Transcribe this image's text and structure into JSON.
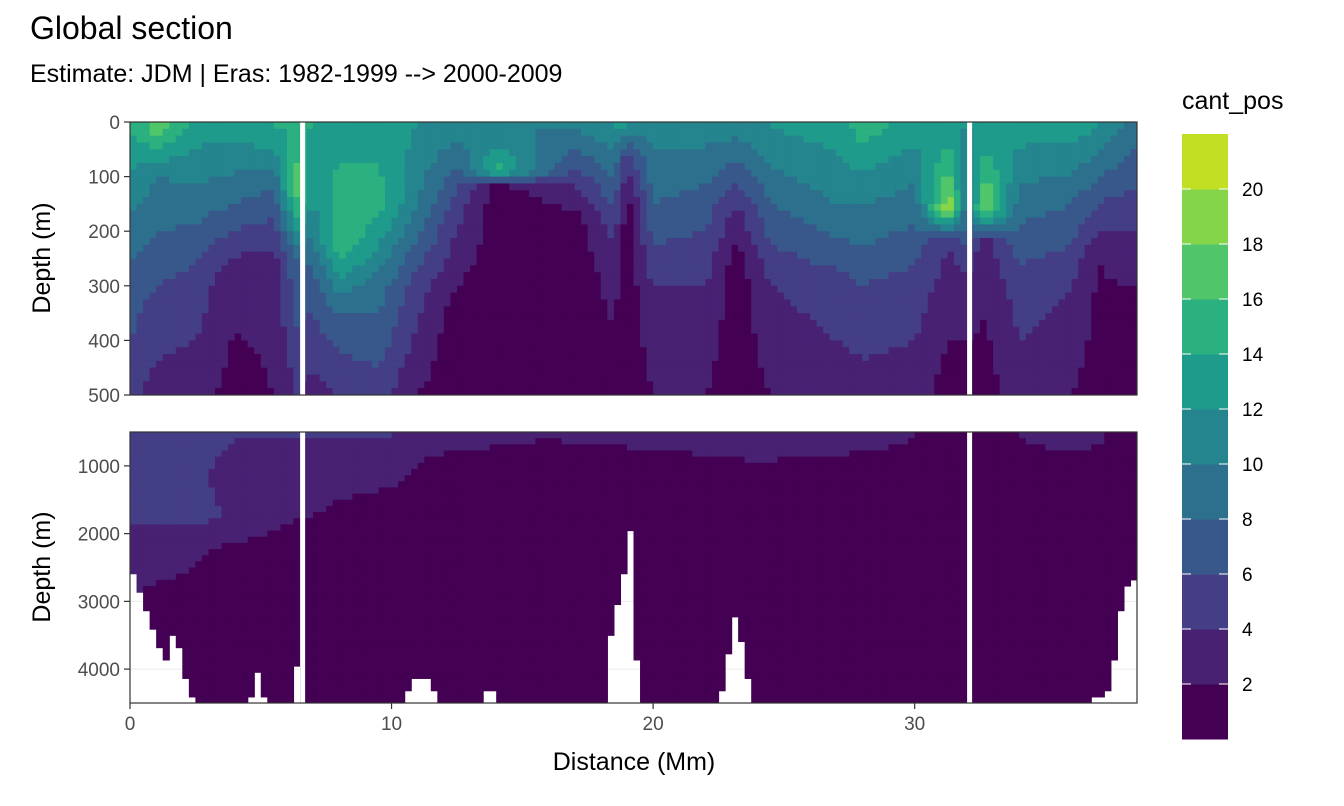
{
  "chart_data": {
    "type": "heatmap",
    "title": "Global section",
    "subtitle": "Estimate: JDM  | Eras: 1982-1999 --> 2000-2009",
    "xlabel": "Distance (Mm)",
    "ylabel_top": "Depth (m)",
    "ylabel_bottom": "Depth (m)",
    "xlim": [
      0,
      38.5
    ],
    "x_ticks": [
      0,
      10,
      20,
      30
    ],
    "x_tick_labels": [
      "0",
      "10",
      "20",
      "30"
    ],
    "top_panel": {
      "ylim": [
        0,
        500
      ],
      "y_reversed": true,
      "y_ticks": [
        0,
        100,
        200,
        300,
        400,
        500
      ],
      "y_tick_labels": [
        "0",
        "100",
        "200",
        "300",
        "400",
        "500"
      ]
    },
    "bottom_panel": {
      "ylim": [
        500,
        4500
      ],
      "y_reversed": true,
      "y_ticks": [
        1000,
        2000,
        3000,
        4000
      ],
      "y_tick_labels": [
        "1000",
        "2000",
        "3000",
        "4000"
      ]
    },
    "gaps_x": [
      6.6,
      32.1
    ],
    "legend": {
      "title": "cant_pos",
      "placement": "right",
      "bin_edges": [
        0,
        2,
        4,
        6,
        8,
        10,
        12,
        14,
        16,
        18,
        20,
        22
      ],
      "colors": [
        "#440154",
        "#482173",
        "#433E85",
        "#38588C",
        "#2D708E",
        "#25858E",
        "#1E9B8A",
        "#2BB07F",
        "#51C56A",
        "#85D54A",
        "#C2DF23",
        "#FDE725"
      ],
      "tick_values": [
        2,
        4,
        6,
        8,
        10,
        12,
        14,
        16,
        18,
        20
      ],
      "tick_labels": [
        "2",
        "4",
        "6",
        "8",
        "10",
        "12",
        "14",
        "16",
        "18",
        "20"
      ]
    },
    "top_anchors": [
      [
        0.0,
        10,
        14,
        300,
        7,
        500,
        5
      ],
      [
        1.0,
        10,
        17,
        100,
        10,
        300,
        6,
        500,
        3
      ],
      [
        2.5,
        10,
        13,
        150,
        9,
        300,
        5,
        500,
        3
      ],
      [
        4.0,
        10,
        13,
        150,
        8,
        270,
        3,
        500,
        1
      ],
      [
        5.5,
        10,
        14,
        120,
        8,
        260,
        3,
        500,
        2
      ],
      [
        6.4,
        10,
        14,
        120,
        18,
        250,
        8,
        500,
        4
      ],
      [
        7.0,
        10,
        14,
        150,
        12,
        300,
        7,
        500,
        3
      ],
      [
        8.0,
        10,
        13,
        220,
        16,
        350,
        8,
        500,
        4
      ],
      [
        9.5,
        10,
        13,
        150,
        15,
        300,
        9,
        500,
        5
      ],
      [
        11.0,
        10,
        12,
        150,
        10,
        300,
        5,
        500,
        2
      ],
      [
        12.5,
        10,
        11,
        150,
        5,
        350,
        1,
        500,
        0.5
      ],
      [
        14.0,
        10,
        10,
        90,
        15,
        120,
        1,
        500,
        0.5
      ],
      [
        17.0,
        10,
        10,
        100,
        5,
        180,
        1,
        500,
        0.5
      ],
      [
        18.5,
        10,
        12,
        100,
        8,
        250,
        3,
        500,
        1
      ],
      [
        19.0,
        10,
        12,
        60,
        5,
        150,
        1,
        500,
        0.5
      ],
      [
        20.0,
        10,
        11,
        150,
        8,
        300,
        4,
        500,
        2
      ],
      [
        22.0,
        10,
        11,
        150,
        7,
        300,
        4,
        500,
        2
      ],
      [
        23.2,
        10,
        11,
        150,
        4,
        250,
        1,
        500,
        0.5
      ],
      [
        24.5,
        10,
        12,
        150,
        8,
        300,
        4,
        500,
        2
      ],
      [
        27.0,
        10,
        13,
        150,
        10,
        300,
        5,
        500,
        3
      ],
      [
        28.0,
        10,
        15,
        120,
        11,
        300,
        6,
        500,
        3
      ],
      [
        30.0,
        10,
        13,
        150,
        9,
        300,
        5,
        500,
        3
      ],
      [
        31.3,
        10,
        12,
        160,
        20,
        220,
        4,
        500,
        1
      ],
      [
        32.0,
        10,
        12,
        180,
        8,
        300,
        3,
        500,
        1
      ],
      [
        32.7,
        10,
        12,
        160,
        19,
        220,
        3,
        500,
        1
      ],
      [
        34.0,
        10,
        13,
        150,
        9,
        300,
        5,
        500,
        3
      ],
      [
        36.0,
        10,
        13,
        150,
        8,
        300,
        4,
        500,
        2
      ],
      [
        37.0,
        10,
        12,
        150,
        6,
        250,
        2,
        500,
        1
      ],
      [
        38.5,
        10,
        9,
        150,
        5,
        300,
        2,
        500,
        1
      ]
    ],
    "bottom_anchors": [
      [
        0.0,
        600,
        6,
        1500,
        5,
        2200,
        3,
        3000,
        2
      ],
      [
        2.0,
        600,
        5,
        1500,
        5,
        2200,
        3,
        3000,
        1
      ],
      [
        4.0,
        600,
        4,
        1200,
        3,
        1800,
        4,
        2300,
        1
      ],
      [
        6.0,
        600,
        4,
        1500,
        3,
        2200,
        1
      ],
      [
        8.0,
        600,
        4,
        1500,
        2,
        2200,
        1
      ],
      [
        10.0,
        600,
        4,
        1300,
        2,
        1800,
        1
      ],
      [
        12.0,
        600,
        3,
        1000,
        1
      ],
      [
        16.0,
        600,
        2,
        900,
        1
      ],
      [
        20.0,
        600,
        3,
        900,
        1
      ],
      [
        24.0,
        600,
        4,
        1100,
        1
      ],
      [
        28.0,
        600,
        3,
        1000,
        1
      ],
      [
        32.0,
        600,
        1
      ],
      [
        36.0,
        600,
        3,
        1000,
        1
      ],
      [
        38.5,
        600,
        1
      ]
    ],
    "floor_points": [
      [
        0.0,
        2500
      ],
      [
        0.5,
        2950
      ],
      [
        1.1,
        3700
      ],
      [
        1.5,
        3900
      ],
      [
        1.7,
        3200
      ],
      [
        2.0,
        4000
      ],
      [
        2.4,
        4400
      ],
      [
        2.6,
        4500
      ],
      [
        4.6,
        4500
      ],
      [
        4.8,
        3900
      ],
      [
        5.2,
        4500
      ],
      [
        6.2,
        4500
      ],
      [
        6.4,
        3900
      ],
      [
        6.55,
        4500
      ],
      [
        6.8,
        4500
      ],
      [
        9.5,
        4500
      ],
      [
        10.5,
        4500
      ],
      [
        10.8,
        4150
      ],
      [
        11.5,
        4150
      ],
      [
        11.8,
        4500
      ],
      [
        13.5,
        4500
      ],
      [
        13.7,
        4150
      ],
      [
        14.0,
        4500
      ],
      [
        18.2,
        4500
      ],
      [
        18.4,
        3400
      ],
      [
        18.8,
        2800
      ],
      [
        19.2,
        1800
      ],
      [
        19.3,
        3500
      ],
      [
        19.5,
        4500
      ],
      [
        22.5,
        4500
      ],
      [
        22.8,
        4000
      ],
      [
        23.1,
        3150
      ],
      [
        23.4,
        3600
      ],
      [
        23.8,
        4500
      ],
      [
        31.9,
        4500
      ],
      [
        32.1,
        4500
      ],
      [
        36.5,
        4500
      ],
      [
        37.5,
        4300
      ],
      [
        37.8,
        3200
      ],
      [
        38.2,
        2700
      ],
      [
        38.5,
        2600
      ]
    ]
  }
}
